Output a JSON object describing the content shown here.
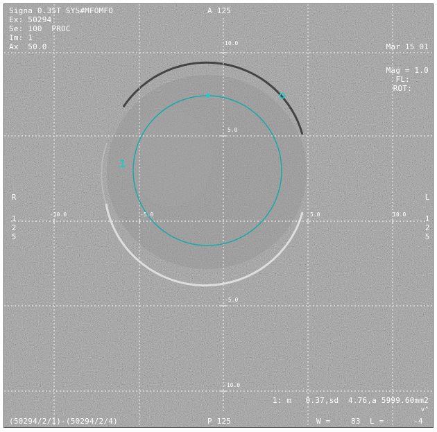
{
  "header": {
    "scanner": "Signa 0.35T SYS#MFOMFO",
    "exam": "Ex: 50294",
    "series": "Se: 100  PROC",
    "image": "Im: 1",
    "axial": "Ax  50.0",
    "anterior": "A 125",
    "date": "Mar 15 01",
    "mag": "Mag = 1.0",
    "fl": "FL:",
    "rot": "ROT:"
  },
  "orientation": {
    "right": "R",
    "left": "L",
    "right_digits": [
      "1",
      "2",
      "5"
    ],
    "left_digits": [
      "1",
      "2",
      "5"
    ],
    "posterior": "P 125"
  },
  "scale_ticks": {
    "v_top": "10.0",
    "v_mid": "5.0",
    "v_neg5": "-5.0",
    "v_neg10": "-10.0",
    "h_neg10": "-10.0",
    "h_neg5": "-5.0",
    "h_5": "5.0",
    "h_10": "10.0"
  },
  "roi": {
    "label": "1",
    "stats": "1: m   0.37,sd  4.76,a 5999.60mm2",
    "cursor_marker": "v^",
    "colors": {
      "roi": "#1aa6a6",
      "marker": "#21c9c9"
    }
  },
  "footer": {
    "source": "(50294/2/1)-(50294/2/4)",
    "window": "W =",
    "window_value": "83",
    "level": "L =",
    "level_value": "-4"
  }
}
